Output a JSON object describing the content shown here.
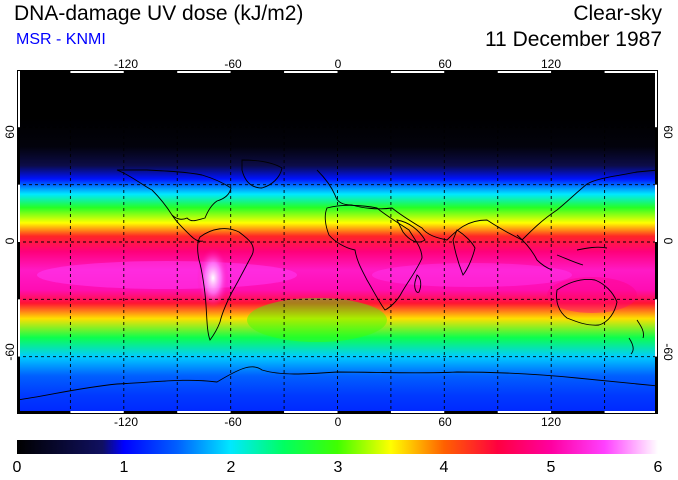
{
  "header": {
    "title": "DNA-damage UV dose (kJ/m2)",
    "subtitle": "MSR - KNMI",
    "sky_condition": "Clear-sky",
    "date": "11 December 1987"
  },
  "axes": {
    "lon_ticks": [
      "-120",
      "-60",
      "0",
      "60",
      "120"
    ],
    "lat_ticks": [
      "60",
      "0",
      "-60"
    ]
  },
  "colorbar": {
    "labels": [
      "0",
      "1",
      "2",
      "3",
      "4",
      "5",
      "6"
    ],
    "min": 0,
    "max": 6,
    "stops": [
      {
        "value": 0,
        "color": "#000000"
      },
      {
        "value": 0.8,
        "color": "#101060"
      },
      {
        "value": 1.0,
        "color": "#0000ff"
      },
      {
        "value": 1.5,
        "color": "#0060ff"
      },
      {
        "value": 2.0,
        "color": "#00e8ff"
      },
      {
        "value": 2.5,
        "color": "#00ff60"
      },
      {
        "value": 3.0,
        "color": "#40ff00"
      },
      {
        "value": 3.5,
        "color": "#ffff00"
      },
      {
        "value": 4.0,
        "color": "#ff6000"
      },
      {
        "value": 4.5,
        "color": "#ff0040"
      },
      {
        "value": 5.0,
        "color": "#ff00a0"
      },
      {
        "value": 5.5,
        "color": "#ff40ff"
      },
      {
        "value": 6.0,
        "color": "#ffffff"
      }
    ]
  },
  "map_data": {
    "projection": "equirectangular",
    "lon_range": [
      -180,
      180
    ],
    "lat_range": [
      -90,
      90
    ],
    "grid": "dashed every 30 degrees",
    "zonal_profile": [
      {
        "lat": 90,
        "dose": 0
      },
      {
        "lat": 65,
        "dose": 0
      },
      {
        "lat": 50,
        "dose": 0.1
      },
      {
        "lat": 40,
        "dose": 0.6
      },
      {
        "lat": 33,
        "dose": 1.1
      },
      {
        "lat": 25,
        "dose": 2.0
      },
      {
        "lat": 18,
        "dose": 2.8
      },
      {
        "lat": 10,
        "dose": 3.5
      },
      {
        "lat": 3,
        "dose": 4.3
      },
      {
        "lat": -5,
        "dose": 4.8
      },
      {
        "lat": -15,
        "dose": 5.2
      },
      {
        "lat": -25,
        "dose": 5.1
      },
      {
        "lat": -32,
        "dose": 4.4
      },
      {
        "lat": -40,
        "dose": 3.6
      },
      {
        "lat": -50,
        "dose": 2.6
      },
      {
        "lat": -60,
        "dose": 1.9
      },
      {
        "lat": -70,
        "dose": 1.5
      },
      {
        "lat": -80,
        "dose": 1.3
      },
      {
        "lat": -90,
        "dose": 1.2
      }
    ],
    "hotspot": {
      "region": "Andes",
      "lon": -68,
      "lat": -20,
      "dose": 6
    }
  }
}
